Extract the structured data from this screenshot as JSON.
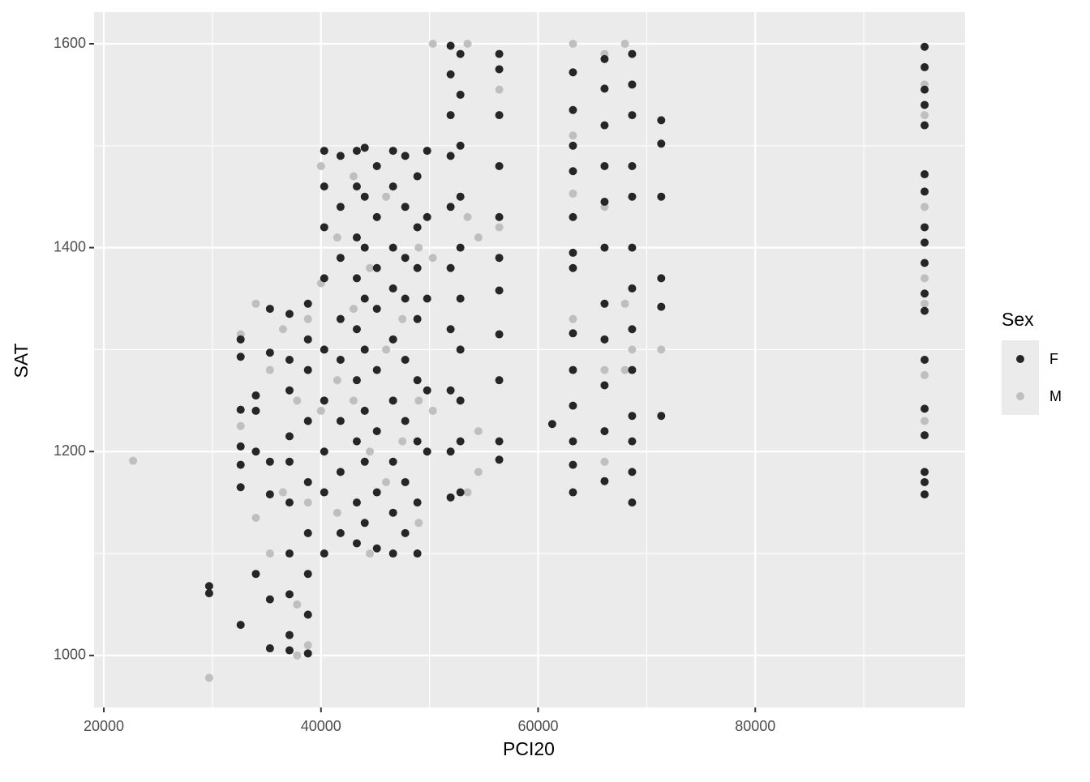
{
  "chart_data": {
    "type": "scatter",
    "x_label": "PCI20",
    "y_label": "SAT",
    "legend_title": "Sex",
    "legend_position": "right",
    "xlim": [
      19100,
      99330
    ],
    "ylim": [
      949,
      1631
    ],
    "xticks": [
      20000,
      40000,
      60000,
      80000
    ],
    "yticks": [
      1000,
      1200,
      1400,
      1600
    ],
    "x_minor_grid": [
      30000,
      50000,
      70000,
      90000
    ],
    "y_minor_grid": [
      1100,
      1300,
      1500
    ],
    "grid": true,
    "series": [
      {
        "name": "F",
        "color": "#262626",
        "x": [
          29700,
          29700,
          32600,
          32600,
          32600,
          32600,
          32600,
          32600,
          32600,
          34000,
          34000,
          34000,
          34000,
          35300,
          35300,
          35300,
          35300,
          35300,
          35300,
          37100,
          37100,
          37100,
          37100,
          37100,
          37100,
          37100,
          37100,
          37100,
          37100,
          38800,
          38800,
          38800,
          38800,
          38800,
          38800,
          38800,
          38800,
          38800,
          40300,
          40300,
          40300,
          40300,
          40300,
          40300,
          40300,
          40300,
          40300,
          41800,
          41800,
          41800,
          41800,
          41800,
          41800,
          41800,
          41800,
          43300,
          43300,
          43300,
          43300,
          43300,
          43300,
          43300,
          43300,
          43300,
          44030,
          44030,
          44030,
          44030,
          44030,
          44030,
          44030,
          44030,
          45150,
          45150,
          45150,
          45150,
          45150,
          45150,
          45150,
          45150,
          46640,
          46640,
          46640,
          46640,
          46640,
          46640,
          46640,
          46640,
          46640,
          47760,
          47760,
          47760,
          47760,
          47760,
          47760,
          47760,
          47760,
          48880,
          48880,
          48880,
          48880,
          48880,
          48880,
          48880,
          48880,
          49780,
          49780,
          49780,
          49780,
          49780,
          51940,
          51940,
          51940,
          51940,
          51940,
          51940,
          51940,
          51940,
          51940,
          51940,
          52840,
          52840,
          52840,
          52840,
          52840,
          52840,
          52840,
          52840,
          52840,
          52840,
          56420,
          56420,
          56420,
          56420,
          56420,
          56420,
          56420,
          56420,
          56420,
          56420,
          56420,
          61300,
          63210,
          63210,
          63210,
          63210,
          63210,
          63210,
          63210,
          63210,
          63210,
          63210,
          63210,
          63210,
          63210,
          66120,
          66120,
          66120,
          66120,
          66120,
          66120,
          66120,
          66120,
          66120,
          66120,
          66120,
          68660,
          68660,
          68660,
          68660,
          68660,
          68660,
          68660,
          68660,
          68660,
          68660,
          68660,
          68660,
          68660,
          71340,
          71340,
          71340,
          71340,
          71340,
          71340,
          95600,
          95600,
          95600,
          95600,
          95600,
          95600,
          95600,
          95600,
          95600,
          95600,
          95600,
          95600,
          95600,
          95600,
          95600,
          95600,
          95600,
          95600
        ],
        "values": [
          1068,
          1061,
          1030,
          1241,
          1293,
          1310,
          1205,
          1187,
          1165,
          1080,
          1255,
          1240,
          1200,
          1007,
          1055,
          1158,
          1190,
          1297,
          1340,
          1005,
          1020,
          1060,
          1100,
          1150,
          1190,
          1215,
          1260,
          1290,
          1335,
          1002,
          1040,
          1080,
          1120,
          1170,
          1230,
          1280,
          1310,
          1345,
          1100,
          1160,
          1200,
          1250,
          1300,
          1370,
          1420,
          1460,
          1495,
          1120,
          1180,
          1230,
          1290,
          1330,
          1390,
          1440,
          1490,
          1110,
          1150,
          1210,
          1270,
          1320,
          1370,
          1410,
          1460,
          1495,
          1130,
          1190,
          1240,
          1300,
          1350,
          1400,
          1450,
          1498,
          1105,
          1160,
          1220,
          1280,
          1340,
          1380,
          1430,
          1480,
          1100,
          1140,
          1190,
          1250,
          1310,
          1360,
          1400,
          1460,
          1495,
          1120,
          1170,
          1230,
          1290,
          1350,
          1390,
          1440,
          1490,
          1100,
          1150,
          1210,
          1270,
          1330,
          1380,
          1420,
          1470,
          1200,
          1260,
          1350,
          1430,
          1495,
          1155,
          1200,
          1260,
          1320,
          1380,
          1440,
          1490,
          1530,
          1570,
          1598,
          1160,
          1210,
          1250,
          1300,
          1350,
          1400,
          1450,
          1500,
          1550,
          1590,
          1192,
          1210,
          1270,
          1315,
          1358,
          1390,
          1430,
          1480,
          1530,
          1575,
          1590,
          1227,
          1160,
          1187,
          1210,
          1245,
          1280,
          1316,
          1380,
          1395,
          1430,
          1475,
          1500,
          1535,
          1572,
          1171,
          1220,
          1265,
          1310,
          1345,
          1400,
          1445,
          1480,
          1520,
          1556,
          1585,
          1150,
          1180,
          1210,
          1235,
          1280,
          1320,
          1360,
          1400,
          1450,
          1480,
          1530,
          1560,
          1590,
          1235,
          1342,
          1370,
          1450,
          1502,
          1525,
          1158,
          1170,
          1180,
          1216,
          1242,
          1290,
          1338,
          1355,
          1385,
          1405,
          1420,
          1455,
          1472,
          1520,
          1540,
          1555,
          1577,
          1597
        ]
      },
      {
        "name": "M",
        "color": "#bfbfbf",
        "x": [
          22690,
          29700,
          32600,
          32600,
          34000,
          34000,
          35300,
          35300,
          36500,
          36500,
          37800,
          37800,
          37800,
          38800,
          38800,
          38800,
          40000,
          40000,
          40000,
          41500,
          41500,
          41500,
          43000,
          43000,
          43000,
          44500,
          44500,
          44500,
          46000,
          46000,
          46000,
          47500,
          47500,
          49000,
          49000,
          49000,
          50300,
          50300,
          50300,
          53500,
          53500,
          53500,
          54500,
          54500,
          54500,
          56420,
          56420,
          63210,
          63210,
          63210,
          63210,
          66120,
          66120,
          66120,
          66120,
          68000,
          68000,
          68000,
          68660,
          68660,
          71340,
          95600,
          95600,
          95600,
          95600,
          95600,
          95600,
          95600
        ],
        "values": [
          1191,
          978,
          1225,
          1315,
          1135,
          1345,
          1100,
          1280,
          1320,
          1160,
          1000,
          1050,
          1250,
          1010,
          1150,
          1330,
          1240,
          1365,
          1480,
          1140,
          1270,
          1410,
          1250,
          1340,
          1470,
          1100,
          1200,
          1380,
          1170,
          1300,
          1450,
          1210,
          1330,
          1250,
          1400,
          1130,
          1600,
          1390,
          1240,
          1160,
          1600,
          1430,
          1180,
          1410,
          1220,
          1555,
          1420,
          1600,
          1453,
          1330,
          1510,
          1190,
          1280,
          1440,
          1590,
          1600,
          1280,
          1345,
          1560,
          1300,
          1300,
          1230,
          1275,
          1345,
          1370,
          1440,
          1530,
          1560
        ]
      }
    ]
  }
}
